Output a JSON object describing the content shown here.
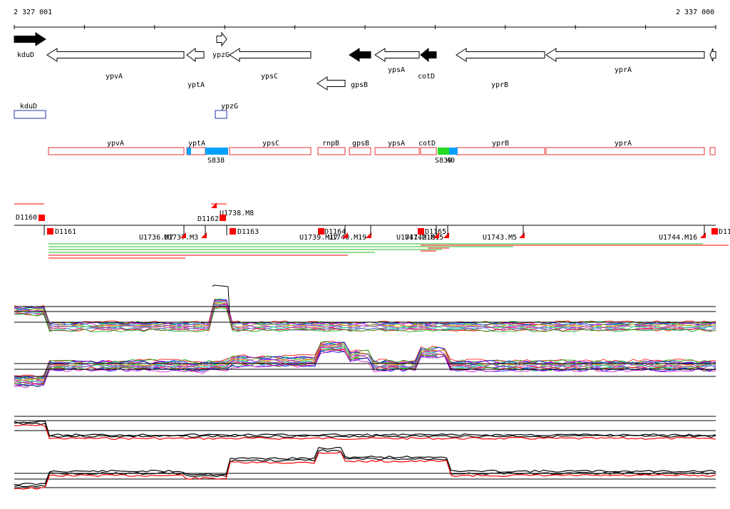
{
  "coords": {
    "start": "2 327 001",
    "end": "2 337 000"
  },
  "genes": [
    {
      "label": "kduD",
      "strand": "+",
      "filled": true
    },
    {
      "label": "ypvA",
      "strand": "-",
      "filled": false
    },
    {
      "label": "yptA",
      "strand": "-",
      "filled": false
    },
    {
      "label": "ypzG",
      "strand": "+",
      "filled": false
    },
    {
      "label": "ypsC",
      "strand": "-",
      "filled": false
    },
    {
      "label": "gpsB",
      "strand": "-",
      "filled": false
    },
    {
      "label": "",
      "strand": "-",
      "filled": true
    },
    {
      "label": "ypsA",
      "strand": "-",
      "filled": false
    },
    {
      "label": "cotD",
      "strand": "-",
      "filled": true
    },
    {
      "label": "yprB",
      "strand": "-",
      "filled": false
    },
    {
      "label": "yprA",
      "strand": "-",
      "filled": false
    },
    {
      "label": "",
      "strand": "-",
      "filled": false
    }
  ],
  "blue_boxes": [
    {
      "label": "kduD"
    },
    {
      "label": "ypzG"
    }
  ],
  "red_boxes": [
    {
      "label": "ypvA"
    },
    {
      "label": "yptA"
    },
    {
      "label": "ypsC"
    },
    {
      "label": "rnpB"
    },
    {
      "label": "gpsB"
    },
    {
      "label": "ypsA"
    },
    {
      "label": "cotD"
    },
    {
      "label": "yprB"
    },
    {
      "label": "yprA"
    },
    {
      "label": ""
    }
  ],
  "segment_labels": [
    "S838",
    "S839",
    "S840"
  ],
  "segments": [
    {
      "label": "D1160"
    },
    {
      "label": "D1161"
    },
    {
      "label": "D1162"
    },
    {
      "label": "U1738.M8"
    },
    {
      "label": "D1163"
    },
    {
      "label": "U1736.M7"
    },
    {
      "label": "U1737.M3"
    },
    {
      "label": "D1164"
    },
    {
      "label": "U1739.M17"
    },
    {
      "label": "U1740.M19"
    },
    {
      "label": "U1741.M16"
    },
    {
      "label": "U1742.M15"
    },
    {
      "label": "D1165"
    },
    {
      "label": "U1743.M5"
    },
    {
      "label": "U1744.M16"
    },
    {
      "label": "D11"
    }
  ],
  "colors": {
    "gene_fill": "#000000",
    "blue_box": "#2233aa",
    "red_box": "#e83030",
    "segment_fill": "#00a0ff",
    "segment_green": "#22dd22",
    "accent_red": "#ff0000",
    "accent_green": "#22bb22"
  }
}
